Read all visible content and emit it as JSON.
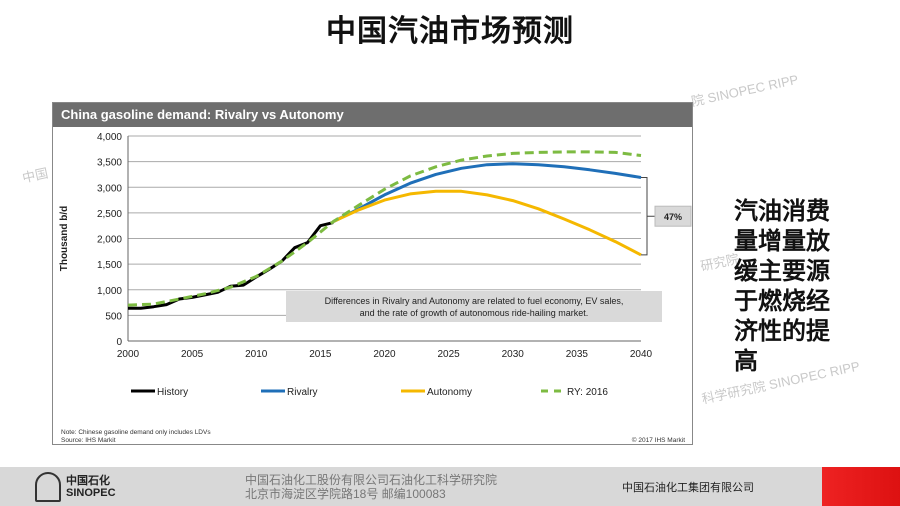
{
  "slide": {
    "title": "中国汽油市场预测",
    "side_text": [
      "汽油消费",
      "量增量放",
      "缓主要源",
      "于燃烧经",
      "济性的提",
      "高"
    ],
    "watermarks": [
      "院 SINOPEC RIPP",
      "中国",
      "研究院",
      "科学研究院 SINOPEC RIPP"
    ]
  },
  "footer": {
    "logo_cn": "中国石化",
    "logo_en": "SINOPEC",
    "address_line1": "中国石油化工股份有限公司石油化工科学研究院",
    "address_line2": "北京市海淀区学院路18号  邮编100083",
    "group": "中国石油化工集团有限公司"
  },
  "chart_data": {
    "type": "line",
    "title": "China gasoline demand: Rivalry vs Autonomy",
    "ylabel": "Thousand b/d",
    "xlabel": "",
    "xlim": [
      2000,
      2040
    ],
    "ylim": [
      0,
      4000
    ],
    "xticks": [
      "2000",
      "2005",
      "2010",
      "2015",
      "2020",
      "2025",
      "2030",
      "2035",
      "2040"
    ],
    "yticks": [
      "0",
      "500",
      "1,000",
      "1,500",
      "2,000",
      "2,500",
      "3,000",
      "3,500",
      "4,000"
    ],
    "grid": "horizontal",
    "legend": "bottom",
    "series": [
      {
        "name": "History",
        "color": "#000000",
        "dash": false,
        "x": [
          2000,
          2001,
          2002,
          2003,
          2004,
          2005,
          2006,
          2007,
          2008,
          2009,
          2010,
          2011,
          2012,
          2013,
          2014,
          2015,
          2016
        ],
        "y": [
          640,
          640,
          670,
          710,
          820,
          850,
          900,
          950,
          1070,
          1090,
          1250,
          1400,
          1560,
          1820,
          1920,
          2250,
          2310
        ]
      },
      {
        "name": "Rivalry",
        "color": "#1f6fb8",
        "dash": false,
        "x": [
          2016,
          2018,
          2020,
          2022,
          2024,
          2026,
          2028,
          2030,
          2032,
          2034,
          2036,
          2038,
          2040
        ],
        "y": [
          2330,
          2580,
          2850,
          3080,
          3250,
          3370,
          3440,
          3460,
          3440,
          3400,
          3340,
          3270,
          3190
        ]
      },
      {
        "name": "Autonomy",
        "color": "#f5b800",
        "dash": false,
        "x": [
          2016,
          2018,
          2020,
          2022,
          2024,
          2026,
          2028,
          2030,
          2032,
          2034,
          2036,
          2038,
          2040
        ],
        "y": [
          2330,
          2560,
          2750,
          2870,
          2920,
          2920,
          2850,
          2740,
          2580,
          2380,
          2170,
          1940,
          1680
        ]
      },
      {
        "name": "RY: 2016",
        "color": "#7dbb42",
        "dash": true,
        "x": [
          2000,
          2002,
          2004,
          2006,
          2008,
          2010,
          2012,
          2014,
          2016,
          2018,
          2020,
          2022,
          2024,
          2026,
          2028,
          2030,
          2032,
          2034,
          2036,
          2038,
          2040
        ],
        "y": [
          700,
          720,
          820,
          920,
          1050,
          1260,
          1560,
          1920,
          2330,
          2650,
          2960,
          3220,
          3400,
          3530,
          3610,
          3660,
          3680,
          3690,
          3690,
          3680,
          3620
        ]
      }
    ],
    "annotations": {
      "gap_label": "47%",
      "callout": [
        "Differences in Rivalry and Autonomy are related to fuel economy, EV sales,",
        "and the rate of growth of autonomous ride-hailing market."
      ]
    },
    "note": "Note: Chinese gasoline demand only includes LDVs",
    "source": "Source: IHS Markit",
    "copyright": "© 2017 IHS Markit"
  }
}
